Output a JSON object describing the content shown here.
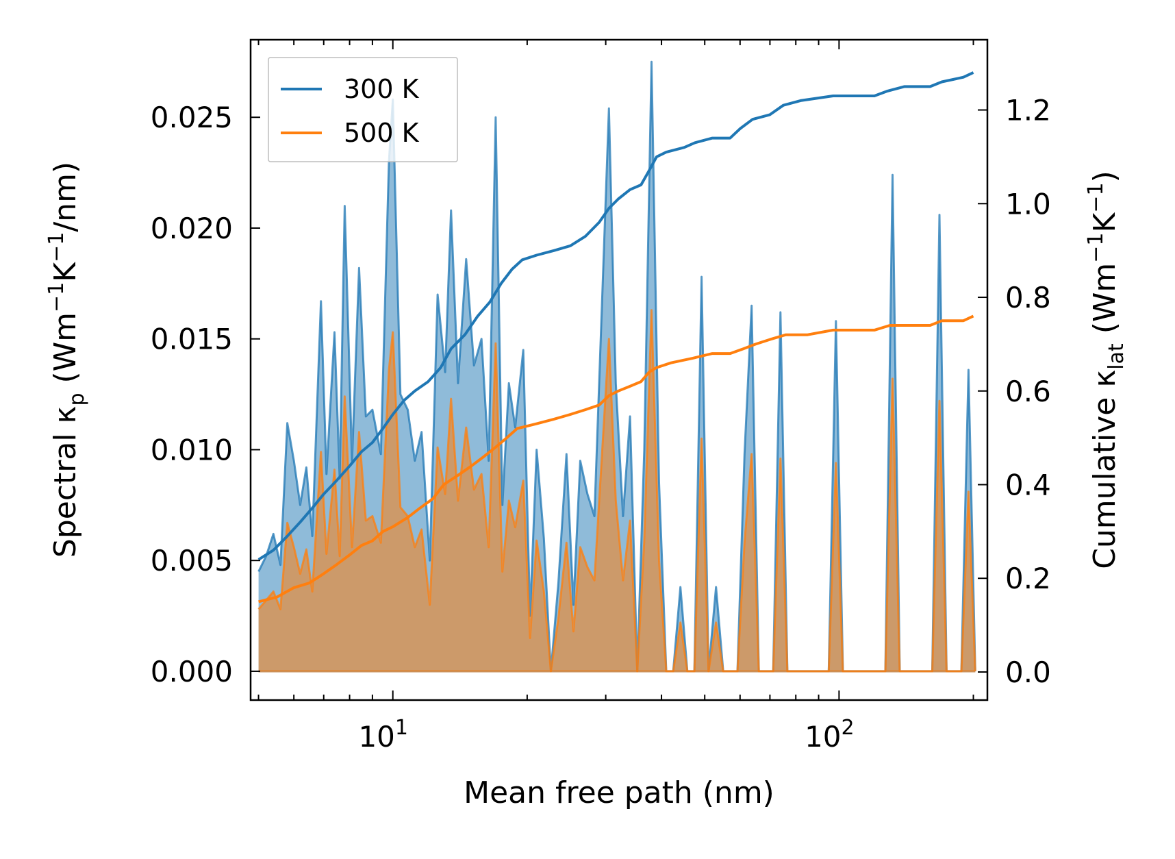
{
  "chart_data": {
    "type": "line",
    "x_scale": "log",
    "xlim": [
      4.8,
      215
    ],
    "ylim_left": [
      -0.0013,
      0.0285
    ],
    "ylim_right": [
      -0.06,
      1.35
    ],
    "xlabel": "Mean free path (nm)",
    "ylabel_left": {
      "main": "Spectral κ",
      "sub": "p",
      "unit_open": " (Wm",
      "e1": "−1",
      "mid": "K",
      "e2": "−1",
      "unit_close": "/nm)"
    },
    "ylabel_right": {
      "main": "Cumulative κ",
      "sub": "lat",
      "unit_open": " (Wm",
      "e1": "−1",
      "mid": "K",
      "e2": "−1",
      "unit_close": ")"
    },
    "x_tick_labels": [
      {
        "value": 10,
        "base": "10",
        "exp": "1"
      },
      {
        "value": 100,
        "base": "10",
        "exp": "2"
      }
    ],
    "y_ticks_left": [
      "0.000",
      "0.005",
      "0.010",
      "0.015",
      "0.020",
      "0.025"
    ],
    "y_ticks_right": [
      "0.0",
      "0.2",
      "0.4",
      "0.6",
      "0.8",
      "1.0",
      "1.2"
    ],
    "legend": {
      "position": "top-left",
      "entries": [
        "300 K",
        "500 K"
      ]
    },
    "colors": {
      "s300": "#1f77b4",
      "s500": "#ff7f0e",
      "fill300": "#1f77b4",
      "fill500": "#ff7f0e",
      "axis": "#000000"
    },
    "series": [
      {
        "name": "300 K",
        "spectral": [
          [
            5.0,
            0.0045
          ],
          [
            5.2,
            0.0052
          ],
          [
            5.4,
            0.0062
          ],
          [
            5.6,
            0.0048
          ],
          [
            5.8,
            0.0112
          ],
          [
            6.0,
            0.0095
          ],
          [
            6.2,
            0.0075
          ],
          [
            6.4,
            0.0092
          ],
          [
            6.6,
            0.0061
          ],
          [
            6.9,
            0.0167
          ],
          [
            7.1,
            0.0089
          ],
          [
            7.4,
            0.0153
          ],
          [
            7.6,
            0.0087
          ],
          [
            7.8,
            0.021
          ],
          [
            8.1,
            0.0095
          ],
          [
            8.4,
            0.0182
          ],
          [
            8.7,
            0.0115
          ],
          [
            9.0,
            0.0118
          ],
          [
            9.4,
            0.0098
          ],
          [
            9.8,
            0.023
          ],
          [
            10.0,
            0.0258
          ],
          [
            10.4,
            0.0125
          ],
          [
            10.8,
            0.0118
          ],
          [
            11.2,
            0.0095
          ],
          [
            11.6,
            0.0108
          ],
          [
            12.1,
            0.005
          ],
          [
            12.6,
            0.017
          ],
          [
            13.1,
            0.0135
          ],
          [
            13.5,
            0.0208
          ],
          [
            14.0,
            0.013
          ],
          [
            14.6,
            0.0186
          ],
          [
            15.2,
            0.0138
          ],
          [
            15.8,
            0.015
          ],
          [
            16.4,
            0.0095
          ],
          [
            17.0,
            0.025
          ],
          [
            17.6,
            0.0075
          ],
          [
            18.2,
            0.013
          ],
          [
            18.8,
            0.011
          ],
          [
            19.6,
            0.0145
          ],
          [
            20.3,
            0.0025
          ],
          [
            21.0,
            0.01
          ],
          [
            21.8,
            0.006
          ],
          [
            22.6,
            0.0
          ],
          [
            23.5,
            0.004
          ],
          [
            24.5,
            0.0098
          ],
          [
            25.4,
            0.003
          ],
          [
            26.3,
            0.0095
          ],
          [
            27.3,
            0.008
          ],
          [
            28.3,
            0.007
          ],
          [
            30.5,
            0.0254
          ],
          [
            31.6,
            0.013
          ],
          [
            32.8,
            0.007
          ],
          [
            34.0,
            0.0115
          ],
          [
            35.3,
            0.0
          ],
          [
            36.6,
            0.01
          ],
          [
            38.0,
            0.0275
          ],
          [
            39.5,
            0.0085
          ],
          [
            41.0,
            0.0
          ],
          [
            42.5,
            0.0
          ],
          [
            44.1,
            0.0038
          ],
          [
            45.7,
            0.0
          ],
          [
            47.4,
            0.0
          ],
          [
            49.2,
            0.0178
          ],
          [
            51.0,
            0.0
          ],
          [
            53.0,
            0.0038
          ],
          [
            55.0,
            0.0
          ],
          [
            57.0,
            0.0
          ],
          [
            59.2,
            0.0
          ],
          [
            61.4,
            0.0098
          ],
          [
            63.7,
            0.0165
          ],
          [
            66.1,
            0.0
          ],
          [
            68.6,
            0.0
          ],
          [
            71.2,
            0.0
          ],
          [
            73.9,
            0.0162
          ],
          [
            76.6,
            0.0
          ],
          [
            85.0,
            0.0
          ],
          [
            88.2,
            0.0
          ],
          [
            94.8,
            0.0
          ],
          [
            98.4,
            0.0158
          ],
          [
            102.0,
            0.0
          ],
          [
            127.0,
            0.0
          ],
          [
            131.8,
            0.0224
          ],
          [
            136.8,
            0.0
          ],
          [
            161.8,
            0.0
          ],
          [
            167.9,
            0.0206
          ],
          [
            174.2,
            0.0
          ],
          [
            188.0,
            0.0
          ],
          [
            195.0,
            0.0136
          ],
          [
            202.0,
            0.0
          ]
        ],
        "cumulative": [
          [
            5.0,
            0.24
          ],
          [
            5.4,
            0.26
          ],
          [
            5.8,
            0.29
          ],
          [
            6.2,
            0.32
          ],
          [
            6.6,
            0.35
          ],
          [
            7.0,
            0.38
          ],
          [
            7.5,
            0.41
          ],
          [
            8.0,
            0.44
          ],
          [
            8.5,
            0.47
          ],
          [
            9.0,
            0.49
          ],
          [
            9.5,
            0.52
          ],
          [
            10.0,
            0.55
          ],
          [
            10.6,
            0.58
          ],
          [
            11.2,
            0.6
          ],
          [
            12.0,
            0.62
          ],
          [
            12.8,
            0.65
          ],
          [
            13.5,
            0.69
          ],
          [
            14.5,
            0.72
          ],
          [
            15.5,
            0.76
          ],
          [
            16.5,
            0.79
          ],
          [
            17.5,
            0.83
          ],
          [
            18.5,
            0.86
          ],
          [
            19.5,
            0.88
          ],
          [
            21.0,
            0.89
          ],
          [
            23.0,
            0.9
          ],
          [
            25.0,
            0.91
          ],
          [
            27.0,
            0.93
          ],
          [
            29.0,
            0.96
          ],
          [
            30.5,
            0.99
          ],
          [
            32.0,
            1.01
          ],
          [
            34.0,
            1.03
          ],
          [
            36.0,
            1.04
          ],
          [
            37.5,
            1.07
          ],
          [
            39.0,
            1.1
          ],
          [
            41.0,
            1.11
          ],
          [
            45.0,
            1.12
          ],
          [
            47.5,
            1.13
          ],
          [
            52.0,
            1.14
          ],
          [
            57.0,
            1.14
          ],
          [
            60.0,
            1.16
          ],
          [
            64.0,
            1.18
          ],
          [
            70.0,
            1.19
          ],
          [
            75.0,
            1.21
          ],
          [
            82.0,
            1.22
          ],
          [
            97.0,
            1.23
          ],
          [
            120.0,
            1.23
          ],
          [
            128.0,
            1.24
          ],
          [
            140.0,
            1.25
          ],
          [
            160.0,
            1.25
          ],
          [
            170.0,
            1.26
          ],
          [
            190.0,
            1.27
          ],
          [
            200.0,
            1.28
          ]
        ]
      },
      {
        "name": "500 K",
        "spectral": [
          [
            5.0,
            0.0028
          ],
          [
            5.2,
            0.0032
          ],
          [
            5.4,
            0.0036
          ],
          [
            5.6,
            0.0028
          ],
          [
            5.8,
            0.0067
          ],
          [
            6.0,
            0.0056
          ],
          [
            6.2,
            0.0044
          ],
          [
            6.4,
            0.0055
          ],
          [
            6.6,
            0.0036
          ],
          [
            6.9,
            0.0099
          ],
          [
            7.1,
            0.0053
          ],
          [
            7.4,
            0.0091
          ],
          [
            7.6,
            0.0052
          ],
          [
            7.8,
            0.0124
          ],
          [
            8.1,
            0.0056
          ],
          [
            8.4,
            0.0108
          ],
          [
            8.7,
            0.0068
          ],
          [
            9.0,
            0.007
          ],
          [
            9.4,
            0.0058
          ],
          [
            9.8,
            0.0136
          ],
          [
            10.0,
            0.0153
          ],
          [
            10.4,
            0.0074
          ],
          [
            10.8,
            0.007
          ],
          [
            11.2,
            0.0056
          ],
          [
            11.6,
            0.0064
          ],
          [
            12.1,
            0.003
          ],
          [
            12.6,
            0.0101
          ],
          [
            13.1,
            0.008
          ],
          [
            13.5,
            0.0123
          ],
          [
            14.0,
            0.0077
          ],
          [
            14.6,
            0.011
          ],
          [
            15.2,
            0.0082
          ],
          [
            15.8,
            0.0089
          ],
          [
            16.4,
            0.0056
          ],
          [
            17.0,
            0.0148
          ],
          [
            17.6,
            0.0045
          ],
          [
            18.2,
            0.0077
          ],
          [
            18.8,
            0.0065
          ],
          [
            19.6,
            0.0086
          ],
          [
            20.3,
            0.0015
          ],
          [
            21.0,
            0.0059
          ],
          [
            21.8,
            0.0036
          ],
          [
            22.6,
            0.0
          ],
          [
            23.5,
            0.0024
          ],
          [
            24.5,
            0.0058
          ],
          [
            25.4,
            0.0018
          ],
          [
            26.3,
            0.0056
          ],
          [
            27.3,
            0.0047
          ],
          [
            28.3,
            0.0041
          ],
          [
            30.5,
            0.015
          ],
          [
            31.6,
            0.0077
          ],
          [
            32.8,
            0.0041
          ],
          [
            34.0,
            0.0068
          ],
          [
            35.3,
            0.0
          ],
          [
            36.6,
            0.0059
          ],
          [
            38.0,
            0.0163
          ],
          [
            39.5,
            0.005
          ],
          [
            41.0,
            0.0
          ],
          [
            42.5,
            0.0
          ],
          [
            44.1,
            0.0022
          ],
          [
            45.7,
            0.0
          ],
          [
            47.4,
            0.0
          ],
          [
            49.2,
            0.0105
          ],
          [
            51.0,
            0.0
          ],
          [
            53.0,
            0.0022
          ],
          [
            55.0,
            0.0
          ],
          [
            57.0,
            0.0
          ],
          [
            59.2,
            0.0
          ],
          [
            61.4,
            0.0058
          ],
          [
            63.7,
            0.0098
          ],
          [
            66.1,
            0.0
          ],
          [
            68.6,
            0.0
          ],
          [
            71.2,
            0.0
          ],
          [
            73.9,
            0.0096
          ],
          [
            76.6,
            0.0
          ],
          [
            85.0,
            0.0
          ],
          [
            88.2,
            0.0
          ],
          [
            94.8,
            0.0
          ],
          [
            98.4,
            0.0094
          ],
          [
            102.0,
            0.0
          ],
          [
            127.0,
            0.0
          ],
          [
            131.8,
            0.0132
          ],
          [
            136.8,
            0.0
          ],
          [
            161.8,
            0.0
          ],
          [
            167.9,
            0.0122
          ],
          [
            174.2,
            0.0
          ],
          [
            188.0,
            0.0
          ],
          [
            195.0,
            0.0081
          ],
          [
            202.0,
            0.0
          ]
        ],
        "cumulative": [
          [
            5.0,
            0.15
          ],
          [
            5.5,
            0.16
          ],
          [
            6.0,
            0.18
          ],
          [
            6.5,
            0.19
          ],
          [
            7.0,
            0.21
          ],
          [
            7.5,
            0.23
          ],
          [
            8.0,
            0.25
          ],
          [
            8.5,
            0.27
          ],
          [
            9.0,
            0.28
          ],
          [
            9.5,
            0.3
          ],
          [
            10.0,
            0.31
          ],
          [
            10.8,
            0.33
          ],
          [
            11.5,
            0.35
          ],
          [
            12.3,
            0.37
          ],
          [
            13.0,
            0.4
          ],
          [
            14.0,
            0.42
          ],
          [
            15.0,
            0.44
          ],
          [
            16.0,
            0.46
          ],
          [
            17.0,
            0.48
          ],
          [
            18.0,
            0.5
          ],
          [
            19.0,
            0.52
          ],
          [
            21.0,
            0.53
          ],
          [
            23.0,
            0.54
          ],
          [
            25.0,
            0.55
          ],
          [
            27.0,
            0.56
          ],
          [
            29.0,
            0.57
          ],
          [
            30.5,
            0.59
          ],
          [
            32.0,
            0.6
          ],
          [
            34.0,
            0.61
          ],
          [
            36.0,
            0.62
          ],
          [
            37.5,
            0.64
          ],
          [
            39.0,
            0.65
          ],
          [
            42.0,
            0.66
          ],
          [
            47.0,
            0.67
          ],
          [
            52.0,
            0.68
          ],
          [
            57.0,
            0.68
          ],
          [
            61.0,
            0.69
          ],
          [
            65.0,
            0.7
          ],
          [
            70.0,
            0.71
          ],
          [
            76.0,
            0.72
          ],
          [
            85.0,
            0.72
          ],
          [
            97.0,
            0.73
          ],
          [
            120.0,
            0.73
          ],
          [
            130.0,
            0.74
          ],
          [
            160.0,
            0.74
          ],
          [
            170.0,
            0.75
          ],
          [
            190.0,
            0.75
          ],
          [
            200.0,
            0.76
          ]
        ]
      }
    ]
  }
}
